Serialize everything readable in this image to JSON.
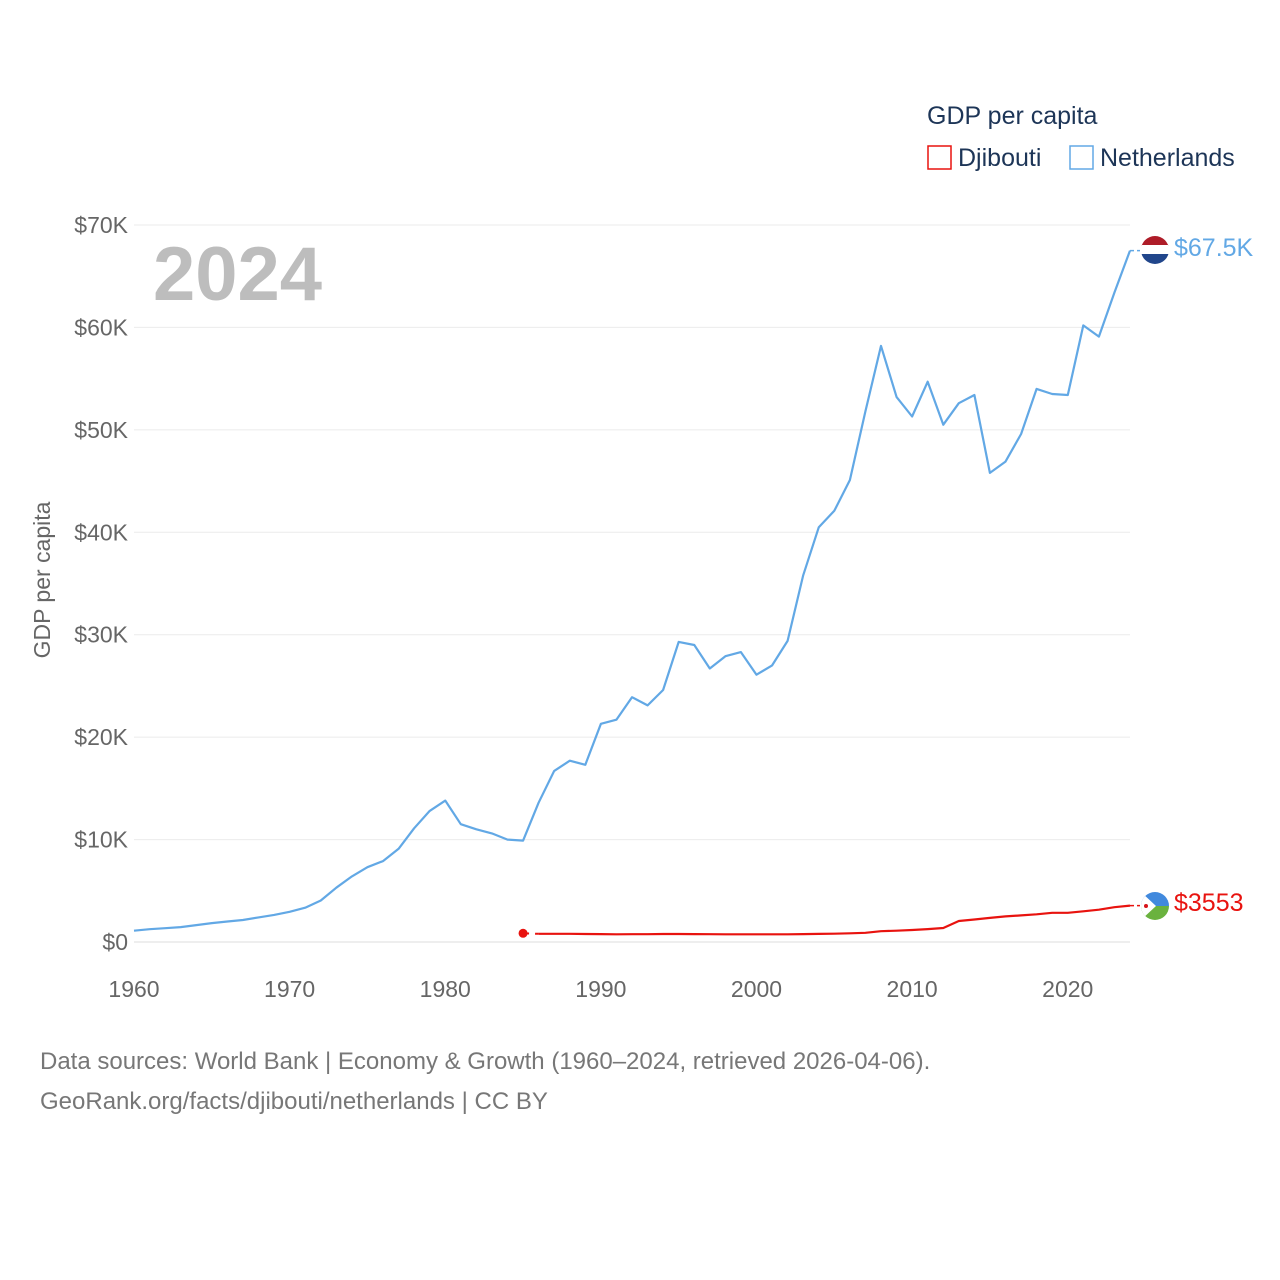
{
  "chart_data": {
    "type": "line",
    "title": "",
    "year_label": "2024",
    "legend": {
      "title": "GDP per capita",
      "placement": "top-right"
    },
    "xlabel": "",
    "ylabel": "GDP per capita",
    "xlim": [
      1960,
      2024
    ],
    "ylim": [
      0,
      70000
    ],
    "x_ticks": [
      1960,
      1970,
      1980,
      1990,
      2000,
      2010,
      2020
    ],
    "x_tick_labels": [
      "1960",
      "1970",
      "1980",
      "1990",
      "2000",
      "2010",
      "2020"
    ],
    "y_ticks": [
      0,
      10000,
      20000,
      30000,
      40000,
      50000,
      60000,
      70000
    ],
    "y_tick_labels": [
      "$0",
      "$10K",
      "$20K",
      "$30K",
      "$40K",
      "$50K",
      "$60K",
      "$70K"
    ],
    "grid": true,
    "series": [
      {
        "name": "Djibouti",
        "color": "#e8130f",
        "end_label": "$3553",
        "flag": "djibouti-flag",
        "start_point": [
          1985,
          850
        ],
        "gap": [
          1985,
          1986
        ],
        "x": [
          1986,
          1987,
          1988,
          1989,
          1990,
          1991,
          1992,
          1993,
          1994,
          1995,
          1996,
          1997,
          1998,
          1999,
          2000,
          2001,
          2002,
          2003,
          2004,
          2005,
          2006,
          2007,
          2008,
          2009,
          2010,
          2011,
          2012,
          2013,
          2014,
          2015,
          2016,
          2017,
          2018,
          2019,
          2020,
          2021,
          2022,
          2023,
          2024
        ],
        "y": [
          800,
          800,
          800,
          780,
          770,
          750,
          760,
          760,
          780,
          780,
          770,
          760,
          750,
          750,
          750,
          750,
          750,
          770,
          790,
          810,
          850,
          900,
          1050,
          1100,
          1170,
          1260,
          1370,
          2050,
          2200,
          2350,
          2500,
          2600,
          2700,
          2850,
          2850,
          3000,
          3150,
          3400,
          3553
        ]
      },
      {
        "name": "Netherlands",
        "color": "#62a8e5",
        "end_label": "$67.5K",
        "flag": "netherlands-flag",
        "x": [
          1960,
          1961,
          1962,
          1963,
          1964,
          1965,
          1966,
          1967,
          1968,
          1969,
          1970,
          1971,
          1972,
          1973,
          1974,
          1975,
          1976,
          1977,
          1978,
          1979,
          1980,
          1981,
          1982,
          1983,
          1984,
          1985,
          1986,
          1987,
          1988,
          1989,
          1990,
          1991,
          1992,
          1993,
          1994,
          1995,
          1996,
          1997,
          1998,
          1999,
          2000,
          2001,
          2002,
          2003,
          2004,
          2005,
          2006,
          2007,
          2008,
          2009,
          2010,
          2011,
          2012,
          2013,
          2014,
          2015,
          2016,
          2017,
          2018,
          2019,
          2020,
          2021,
          2022,
          2023,
          2024
        ],
        "y": [
          1100,
          1250,
          1350,
          1450,
          1650,
          1850,
          2000,
          2150,
          2400,
          2650,
          2950,
          3350,
          4050,
          5300,
          6400,
          7300,
          7900,
          9100,
          11100,
          12800,
          13800,
          11500,
          11000,
          10600,
          10000,
          9900,
          13600,
          16700,
          17700,
          17300,
          21300,
          21700,
          23900,
          23100,
          24600,
          29300,
          29000,
          26700,
          27900,
          28300,
          26100,
          27000,
          29400,
          35800,
          40500,
          42100,
          45100,
          51800,
          58200,
          53200,
          51300,
          54700,
          50500,
          52600,
          53400,
          45800,
          46900,
          49600,
          54000,
          53500,
          53400,
          60200,
          59100,
          63400,
          67500
        ]
      }
    ]
  },
  "source": {
    "line1": "Data sources: World Bank | Economy & Growth (1960–2024, retrieved 2026-04-06).",
    "line2": "GeoRank.org/facts/djibouti/netherlands | CC BY"
  }
}
